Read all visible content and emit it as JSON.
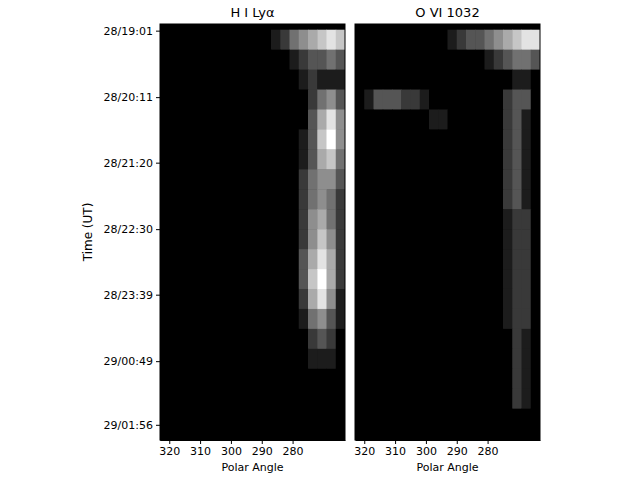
{
  "chart_data": [
    {
      "type": "heatmap",
      "title": "H I Lyα",
      "x_label": "Polar Angle",
      "y_label": "Time (UT)",
      "xlim": [
        323,
        263
      ],
      "xticks": [
        320,
        310,
        300,
        290,
        280
      ],
      "ylim": [
        18.9,
        26.2
      ],
      "yticks": [
        {
          "value": 19.0167,
          "label": "28/19:01"
        },
        {
          "value": 20.1833,
          "label": "28/20:11"
        },
        {
          "value": 21.3333,
          "label": "28/21:20"
        },
        {
          "value": 22.5,
          "label": "28/22:30"
        },
        {
          "value": 23.65,
          "label": "28/23:39"
        },
        {
          "value": 24.8167,
          "label": "29/00:49"
        },
        {
          "value": 25.9333,
          "label": "29/01:56"
        }
      ],
      "x_edges": [
        323,
        320,
        317,
        314,
        311,
        308,
        305,
        302,
        299,
        296,
        293,
        290,
        287,
        284,
        281,
        278,
        275,
        272,
        269,
        266,
        263
      ],
      "y_edges": [
        19.0,
        19.35,
        19.7,
        20.05,
        20.4,
        20.75,
        21.1,
        21.45,
        21.8,
        22.15,
        22.5,
        22.85,
        23.2,
        23.55,
        23.9,
        24.25,
        24.6,
        24.95,
        25.3,
        25.65,
        26.0
      ],
      "zlim": [
        0,
        9
      ],
      "z": [
        [
          0,
          0,
          0,
          0,
          0,
          0,
          0,
          0,
          0,
          0,
          0,
          0,
          1,
          2,
          4,
          5,
          6,
          7,
          8,
          7
        ],
        [
          0,
          0,
          0,
          0,
          0,
          0,
          0,
          0,
          0,
          0,
          0,
          0,
          0,
          0,
          1,
          2,
          3,
          3,
          4,
          3
        ],
        [
          0,
          0,
          0,
          0,
          0,
          0,
          0,
          0,
          0,
          0,
          0,
          0,
          0,
          0,
          0,
          1,
          2,
          1,
          1,
          1
        ],
        [
          0,
          0,
          0,
          0,
          0,
          0,
          0,
          0,
          0,
          0,
          0,
          0,
          0,
          0,
          0,
          0,
          2,
          4,
          5,
          3
        ],
        [
          0,
          0,
          0,
          0,
          0,
          0,
          0,
          0,
          0,
          0,
          0,
          0,
          0,
          0,
          0,
          0,
          3,
          6,
          8,
          5
        ],
        [
          0,
          0,
          0,
          0,
          0,
          0,
          0,
          0,
          0,
          0,
          0,
          0,
          0,
          0,
          0,
          1,
          3,
          7,
          9,
          5
        ],
        [
          0,
          0,
          0,
          0,
          0,
          0,
          0,
          0,
          0,
          0,
          0,
          0,
          0,
          0,
          0,
          1,
          3,
          6,
          7,
          4
        ],
        [
          0,
          0,
          0,
          0,
          0,
          0,
          0,
          0,
          0,
          0,
          0,
          0,
          0,
          0,
          0,
          2,
          4,
          5,
          5,
          3
        ],
        [
          0,
          0,
          0,
          0,
          0,
          0,
          0,
          0,
          0,
          0,
          0,
          0,
          0,
          0,
          0,
          2,
          4,
          5,
          4,
          2
        ],
        [
          0,
          0,
          0,
          0,
          0,
          0,
          0,
          0,
          0,
          0,
          0,
          0,
          0,
          0,
          0,
          2,
          5,
          6,
          4,
          2
        ],
        [
          0,
          0,
          0,
          0,
          0,
          0,
          0,
          0,
          0,
          0,
          0,
          0,
          0,
          0,
          0,
          2,
          5,
          7,
          5,
          2
        ],
        [
          0,
          0,
          0,
          0,
          0,
          0,
          0,
          0,
          0,
          0,
          0,
          0,
          0,
          0,
          0,
          3,
          6,
          8,
          6,
          2
        ],
        [
          0,
          0,
          0,
          0,
          0,
          0,
          0,
          0,
          0,
          0,
          0,
          0,
          0,
          0,
          0,
          3,
          7,
          9,
          6,
          2
        ],
        [
          0,
          0,
          0,
          0,
          0,
          0,
          0,
          0,
          0,
          0,
          0,
          0,
          0,
          0,
          0,
          2,
          6,
          8,
          5,
          1
        ],
        [
          0,
          0,
          0,
          0,
          0,
          0,
          0,
          0,
          0,
          0,
          0,
          0,
          0,
          0,
          0,
          1,
          4,
          5,
          3,
          1
        ],
        [
          0,
          0,
          0,
          0,
          0,
          0,
          0,
          0,
          0,
          0,
          0,
          0,
          0,
          0,
          0,
          0,
          2,
          3,
          2,
          0
        ],
        [
          0,
          0,
          0,
          0,
          0,
          0,
          0,
          0,
          0,
          0,
          0,
          0,
          0,
          0,
          0,
          0,
          1,
          1,
          1,
          0
        ],
        [
          0,
          0,
          0,
          0,
          0,
          0,
          0,
          0,
          0,
          0,
          0,
          0,
          0,
          0,
          0,
          0,
          0,
          0,
          0,
          0
        ],
        [
          0,
          0,
          0,
          0,
          0,
          0,
          0,
          0,
          0,
          0,
          0,
          0,
          0,
          0,
          0,
          0,
          0,
          0,
          0,
          0
        ],
        [
          0,
          0,
          0,
          0,
          0,
          0,
          0,
          0,
          0,
          0,
          0,
          0,
          0,
          0,
          0,
          0,
          0,
          0,
          0,
          0
        ]
      ]
    },
    {
      "type": "heatmap",
      "title": "O VI 1032",
      "x_label": "Polar Angle",
      "tick_labels": "x",
      "xlim": [
        323,
        263
      ],
      "xticks": [
        320,
        310,
        300,
        290,
        280
      ],
      "ylim": [
        18.9,
        26.2
      ],
      "x_edges": [
        323,
        320,
        317,
        314,
        311,
        308,
        305,
        302,
        299,
        296,
        293,
        290,
        287,
        284,
        281,
        278,
        275,
        272,
        269,
        266,
        263
      ],
      "y_edges": [
        19.0,
        19.35,
        19.7,
        20.05,
        20.4,
        20.75,
        21.1,
        21.45,
        21.8,
        22.15,
        22.5,
        22.85,
        23.2,
        23.55,
        23.9,
        24.25,
        24.6,
        24.95,
        25.3,
        25.65,
        26.0
      ],
      "zlim": [
        0,
        9
      ],
      "z": [
        [
          0,
          0,
          0,
          0,
          0,
          0,
          0,
          0,
          0,
          0,
          1,
          2,
          3,
          3,
          4,
          5,
          6,
          7,
          8,
          8
        ],
        [
          0,
          0,
          0,
          0,
          0,
          0,
          0,
          0,
          0,
          0,
          0,
          0,
          0,
          0,
          1,
          2,
          3,
          4,
          4,
          3
        ],
        [
          0,
          0,
          0,
          0,
          0,
          0,
          0,
          0,
          0,
          0,
          0,
          0,
          0,
          0,
          0,
          0,
          0,
          1,
          1,
          0
        ],
        [
          0,
          1,
          3,
          3,
          3,
          2,
          2,
          1,
          0,
          0,
          0,
          0,
          0,
          0,
          0,
          0,
          2,
          3,
          3,
          0
        ],
        [
          0,
          0,
          0,
          0,
          0,
          0,
          0,
          0,
          1,
          1,
          0,
          0,
          0,
          0,
          0,
          0,
          2,
          3,
          1,
          0
        ],
        [
          0,
          0,
          0,
          0,
          0,
          0,
          0,
          0,
          0,
          0,
          0,
          0,
          0,
          0,
          0,
          0,
          2,
          3,
          1,
          0
        ],
        [
          0,
          0,
          0,
          0,
          0,
          0,
          0,
          0,
          0,
          0,
          0,
          0,
          0,
          0,
          0,
          0,
          2,
          3,
          1,
          0
        ],
        [
          0,
          0,
          0,
          0,
          0,
          0,
          0,
          0,
          0,
          0,
          0,
          0,
          0,
          0,
          0,
          0,
          2,
          3,
          1,
          0
        ],
        [
          0,
          0,
          0,
          0,
          0,
          0,
          0,
          0,
          0,
          0,
          0,
          0,
          0,
          0,
          0,
          0,
          2,
          3,
          1,
          0
        ],
        [
          0,
          0,
          0,
          0,
          0,
          0,
          0,
          0,
          0,
          0,
          0,
          0,
          0,
          0,
          0,
          0,
          1,
          2,
          2,
          0
        ],
        [
          0,
          0,
          0,
          0,
          0,
          0,
          0,
          0,
          0,
          0,
          0,
          0,
          0,
          0,
          0,
          0,
          1,
          2,
          2,
          0
        ],
        [
          0,
          0,
          0,
          0,
          0,
          0,
          0,
          0,
          0,
          0,
          0,
          0,
          0,
          0,
          0,
          0,
          1,
          2,
          2,
          0
        ],
        [
          0,
          0,
          0,
          0,
          0,
          0,
          0,
          0,
          0,
          0,
          0,
          0,
          0,
          0,
          0,
          0,
          1,
          2,
          2,
          0
        ],
        [
          0,
          0,
          0,
          0,
          0,
          0,
          0,
          0,
          0,
          0,
          0,
          0,
          0,
          0,
          0,
          0,
          1,
          2,
          2,
          0
        ],
        [
          0,
          0,
          0,
          0,
          0,
          0,
          0,
          0,
          0,
          0,
          0,
          0,
          0,
          0,
          0,
          0,
          1,
          2,
          2,
          0
        ],
        [
          0,
          0,
          0,
          0,
          0,
          0,
          0,
          0,
          0,
          0,
          0,
          0,
          0,
          0,
          0,
          0,
          0,
          2,
          1,
          0
        ],
        [
          0,
          0,
          0,
          0,
          0,
          0,
          0,
          0,
          0,
          0,
          0,
          0,
          0,
          0,
          0,
          0,
          0,
          2,
          1,
          0
        ],
        [
          0,
          0,
          0,
          0,
          0,
          0,
          0,
          0,
          0,
          0,
          0,
          0,
          0,
          0,
          0,
          0,
          0,
          2,
          1,
          0
        ],
        [
          0,
          0,
          0,
          0,
          0,
          0,
          0,
          0,
          0,
          0,
          0,
          0,
          0,
          0,
          0,
          0,
          0,
          2,
          1,
          0
        ],
        [
          0,
          0,
          0,
          0,
          0,
          0,
          0,
          0,
          0,
          0,
          0,
          0,
          0,
          0,
          0,
          0,
          0,
          0,
          0,
          0
        ]
      ]
    }
  ]
}
